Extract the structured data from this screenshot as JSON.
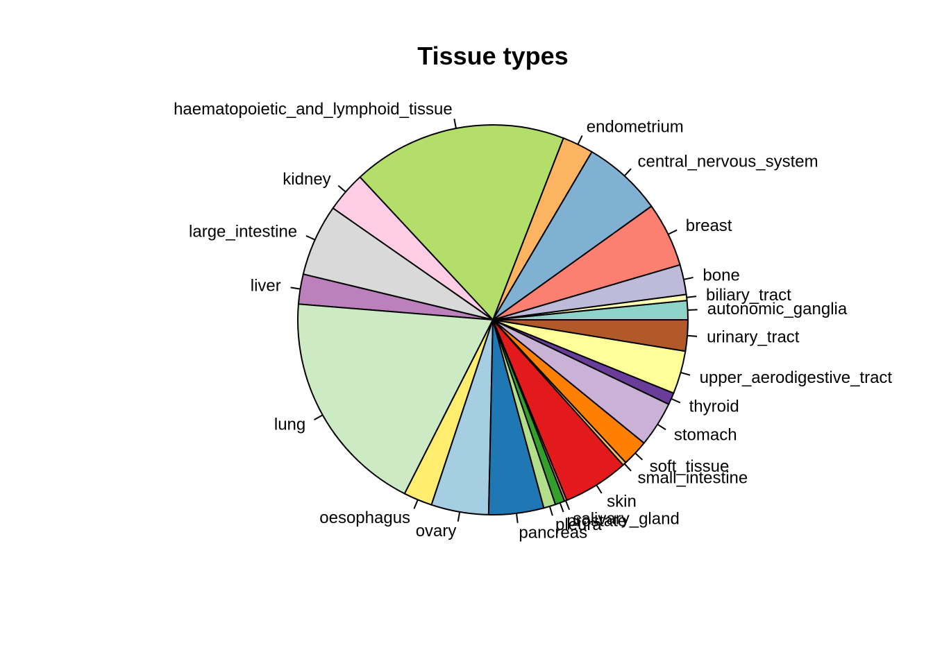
{
  "chart_data": {
    "type": "pie",
    "title": "Tissue types",
    "direction": "counterclockwise",
    "start_angle_deg": 0,
    "slices": [
      {
        "label": "autonomic_ganglia",
        "value": 1.6,
        "color": "#8DD3C7"
      },
      {
        "label": "biliary_tract",
        "value": 0.5,
        "color": "#FFFFB3"
      },
      {
        "label": "bone",
        "value": 2.5,
        "color": "#BEBADA"
      },
      {
        "label": "breast",
        "value": 5.4,
        "color": "#FB8072"
      },
      {
        "label": "central_nervous_system",
        "value": 6.7,
        "color": "#80B1D3"
      },
      {
        "label": "endometrium",
        "value": 2.6,
        "color": "#FDB462"
      },
      {
        "label": "haematopoietic_and_lymphoid_tissue",
        "value": 18.0,
        "color": "#B3DE69"
      },
      {
        "label": "kidney",
        "value": 3.4,
        "color": "#FCCDE5"
      },
      {
        "label": "large_intestine",
        "value": 6.0,
        "color": "#D9D9D9"
      },
      {
        "label": "liver",
        "value": 2.5,
        "color": "#BC80BD"
      },
      {
        "label": "lung",
        "value": 19.0,
        "color": "#CCEBC5"
      },
      {
        "label": "oesophagus",
        "value": 2.4,
        "color": "#FFED6F"
      },
      {
        "label": "ovary",
        "value": 4.8,
        "color": "#A6CEE3"
      },
      {
        "label": "pancreas",
        "value": 4.6,
        "color": "#1F78B4"
      },
      {
        "label": "pleura",
        "value": 1.0,
        "color": "#B2DF8A"
      },
      {
        "label": "prostate",
        "value": 0.8,
        "color": "#33A02C"
      },
      {
        "label": "salivary_gland",
        "value": 0.2,
        "color": "#FB9A99"
      },
      {
        "label": "skin",
        "value": 5.5,
        "color": "#E31A1C"
      },
      {
        "label": "small_intestine",
        "value": 0.3,
        "color": "#FDBF6F"
      },
      {
        "label": "soft_tissue",
        "value": 2.2,
        "color": "#FF7F00"
      },
      {
        "label": "stomach",
        "value": 3.8,
        "color": "#CAB2D6"
      },
      {
        "label": "thyroid",
        "value": 1.0,
        "color": "#6A3D9A"
      },
      {
        "label": "upper_aerodigestive_tract",
        "value": 3.6,
        "color": "#FFFF99"
      },
      {
        "label": "urinary_tract",
        "value": 2.6,
        "color": "#B15928"
      }
    ]
  }
}
